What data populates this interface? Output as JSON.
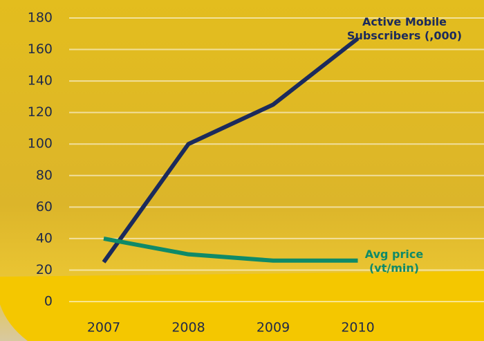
{
  "chart_data": {
    "type": "line",
    "categories": [
      "2007",
      "2008",
      "2009",
      "2010"
    ],
    "series": [
      {
        "name": "Active Mobile Subscribers (,000)",
        "color": "#1b2a5c",
        "values": [
          25,
          100,
          125,
          167
        ]
      },
      {
        "name": "Avg price (vt/min)",
        "color": "#0f8a68",
        "values": [
          40,
          30,
          26,
          26
        ]
      }
    ],
    "ylim": [
      0,
      180
    ],
    "yticks": [
      0,
      20,
      40,
      60,
      80,
      100,
      120,
      140,
      160,
      180
    ],
    "grid": true
  }
}
